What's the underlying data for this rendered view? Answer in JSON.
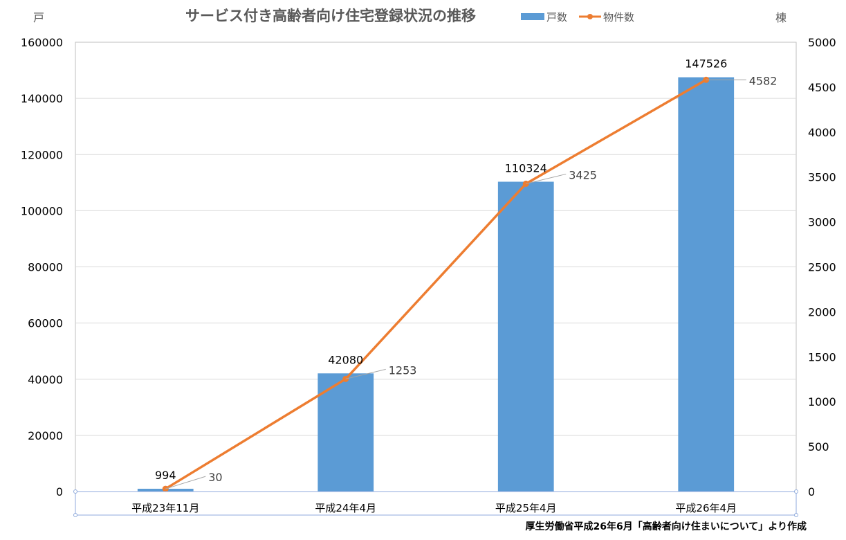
{
  "chart_data": {
    "type": "bar",
    "title": "サービス付き高齢者向け住宅登録状況の推移",
    "y_left_unit": "戸",
    "y_right_unit": "棟",
    "categories": [
      "平成23年11月",
      "平成24年4月",
      "平成25年4月",
      "平成26年4月"
    ],
    "series": [
      {
        "name": "戸数",
        "type": "bar",
        "axis": "left",
        "color": "#5B9BD5",
        "values": [
          994,
          42080,
          110324,
          147526
        ]
      },
      {
        "name": "物件数",
        "type": "line",
        "axis": "right",
        "color": "#ED7D31",
        "values": [
          30,
          1253,
          3425,
          4582
        ]
      }
    ],
    "ylim_left": [
      0,
      160000
    ],
    "ylim_right": [
      0,
      5000
    ],
    "yticks_left": [
      "0",
      "20000",
      "40000",
      "60000",
      "80000",
      "100000",
      "120000",
      "140000",
      "160000"
    ],
    "yticks_right": [
      "0",
      "500",
      "1000",
      "1500",
      "2000",
      "2500",
      "3000",
      "3500",
      "4000",
      "4500",
      "5000"
    ],
    "grid": true,
    "legend_position": "top",
    "source": "厚生労働省平成26年6月「高齢者向け住まいについて」より作成"
  }
}
